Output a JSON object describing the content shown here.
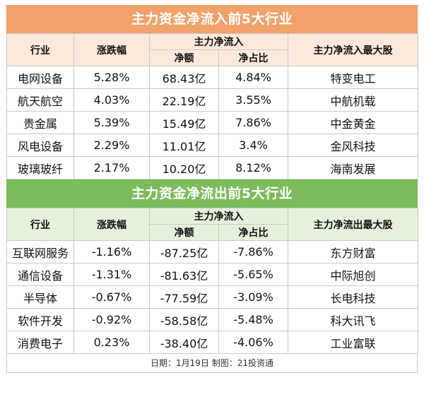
{
  "inflow": {
    "title": "主力资金净流入前5大行业",
    "headers": {
      "industry": "行业",
      "change": "涨跌幅",
      "net_flow_group": "主力净流入",
      "net_amount": "净额",
      "net_ratio": "净占比",
      "top_stock": "主力净流入最大股"
    },
    "rows": [
      {
        "industry": "电网设备",
        "change": "5.28%",
        "amount": "68.43亿",
        "ratio": "4.84%",
        "stock": "特变电工"
      },
      {
        "industry": "航天航空",
        "change": "4.03%",
        "amount": "22.19亿",
        "ratio": "3.55%",
        "stock": "中航机载"
      },
      {
        "industry": "贵金属",
        "change": "5.39%",
        "amount": "15.49亿",
        "ratio": "7.86%",
        "stock": "中金黄金"
      },
      {
        "industry": "风电设备",
        "change": "2.29%",
        "amount": "11.01亿",
        "ratio": "3.4%",
        "stock": "金风科技"
      },
      {
        "industry": "玻璃玻纤",
        "change": "2.17%",
        "amount": "10.20亿",
        "ratio": "8.12%",
        "stock": "海南发展"
      }
    ]
  },
  "outflow": {
    "title": "主力资金净流出前5大行业",
    "headers": {
      "industry": "行业",
      "change": "涨跌幅",
      "net_flow_group": "主力净流入",
      "net_amount": "净额",
      "net_ratio": "净占比",
      "top_stock": "主力净流出最大股"
    },
    "rows": [
      {
        "industry": "互联网服务",
        "change": "-1.16%",
        "amount": "-87.25亿",
        "ratio": "-7.86%",
        "stock": "东方财富"
      },
      {
        "industry": "通信设备",
        "change": "-1.31%",
        "amount": "-81.63亿",
        "ratio": "-5.65%",
        "stock": "中际旭创"
      },
      {
        "industry": "半导体",
        "change": "-0.67%",
        "amount": "-77.59亿",
        "ratio": "-3.09%",
        "stock": "长电科技"
      },
      {
        "industry": "软件开发",
        "change": "-0.92%",
        "amount": "-58.58亿",
        "ratio": "-5.48%",
        "stock": "科大讯飞"
      },
      {
        "industry": "消费电子",
        "change": "0.23%",
        "amount": "-38.40亿",
        "ratio": "-4.06%",
        "stock": "工业富联"
      }
    ]
  },
  "footer": "日期：1月19日 制图：21投资通",
  "colors": {
    "inflow_banner": "#f0a26a",
    "inflow_header": "#fde9dc",
    "outflow_banner": "#7dbb5c",
    "outflow_header": "#e5f1dc"
  }
}
